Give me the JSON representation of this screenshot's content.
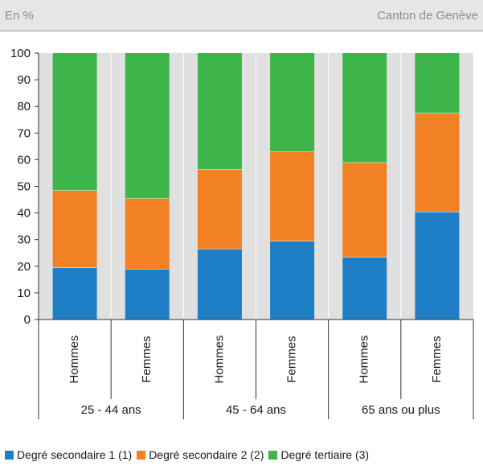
{
  "header": {
    "left": "En %",
    "right": "Canton de Genève"
  },
  "chart_data": {
    "type": "bar",
    "stacked": true,
    "title": "",
    "xlabel": "",
    "ylabel": "",
    "ylim": [
      0,
      100
    ],
    "yticks": [
      0,
      10,
      20,
      30,
      40,
      50,
      60,
      70,
      80,
      90,
      100
    ],
    "grid": false,
    "legend_position": "bottom",
    "categories": [
      "Hommes",
      "Femmes",
      "Hommes",
      "Femmes",
      "Hommes",
      "Femmes"
    ],
    "groups": [
      {
        "label": "25 - 44 ans",
        "categories": [
          "Hommes",
          "Femmes"
        ]
      },
      {
        "label": "45 - 64 ans",
        "categories": [
          "Hommes",
          "Femmes"
        ]
      },
      {
        "label": "65 ans ou plus",
        "categories": [
          "Hommes",
          "Femmes"
        ]
      }
    ],
    "series": [
      {
        "name": "Degré secondaire 1 (1)",
        "color": "#1f7fc6",
        "values": [
          19.5,
          19.0,
          26.5,
          29.5,
          23.5,
          40.5
        ]
      },
      {
        "name": "Degré secondaire 2 (2)",
        "color": "#f28123",
        "values": [
          29.0,
          26.5,
          30.0,
          33.5,
          35.5,
          37.0
        ]
      },
      {
        "name": "Degré tertiaire (3)",
        "color": "#3db54a",
        "values": [
          51.5,
          54.5,
          43.5,
          37.0,
          41.0,
          22.5
        ]
      }
    ]
  },
  "colors": {
    "plot_background": "#e0e0e0",
    "divider": "#ffffff"
  }
}
